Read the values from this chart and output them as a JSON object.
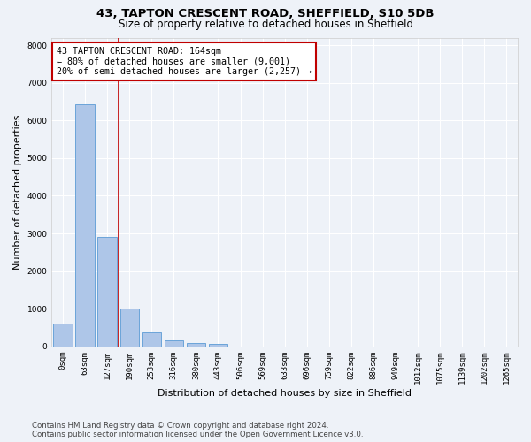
{
  "title1": "43, TAPTON CRESCENT ROAD, SHEFFIELD, S10 5DB",
  "title2": "Size of property relative to detached houses in Sheffield",
  "xlabel": "Distribution of detached houses by size in Sheffield",
  "ylabel": "Number of detached properties",
  "bar_labels": [
    "0sqm",
    "63sqm",
    "127sqm",
    "190sqm",
    "253sqm",
    "316sqm",
    "380sqm",
    "443sqm",
    "506sqm",
    "569sqm",
    "633sqm",
    "696sqm",
    "759sqm",
    "822sqm",
    "886sqm",
    "949sqm",
    "1012sqm",
    "1075sqm",
    "1139sqm",
    "1202sqm",
    "1265sqm"
  ],
  "bar_values": [
    610,
    6430,
    2920,
    1000,
    380,
    165,
    100,
    70,
    0,
    0,
    0,
    0,
    0,
    0,
    0,
    0,
    0,
    0,
    0,
    0,
    0
  ],
  "bar_color": "#aec6e8",
  "bar_edge_color": "#5b9bd5",
  "vline_x": 2.52,
  "vline_color": "#c00000",
  "annotation_text": "43 TAPTON CRESCENT ROAD: 164sqm\n← 80% of detached houses are smaller (9,001)\n20% of semi-detached houses are larger (2,257) →",
  "annotation_box_color": "#ffffff",
  "annotation_box_edge": "#c00000",
  "ylim": [
    0,
    8200
  ],
  "yticks": [
    0,
    1000,
    2000,
    3000,
    4000,
    5000,
    6000,
    7000,
    8000
  ],
  "footer": "Contains HM Land Registry data © Crown copyright and database right 2024.\nContains public sector information licensed under the Open Government Licence v3.0.",
  "bg_color": "#eef2f8",
  "grid_color": "#ffffff",
  "title_fontsize": 9.5,
  "subtitle_fontsize": 8.5,
  "axis_label_fontsize": 8,
  "tick_fontsize": 6.5,
  "footer_fontsize": 6.2,
  "annotation_fontsize": 7.2
}
